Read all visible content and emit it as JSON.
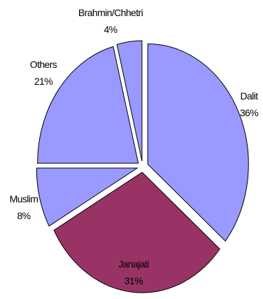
{
  "chart_data": {
    "type": "pie",
    "title": "",
    "slices": [
      {
        "label": "Dalit",
        "pct_label": "36%",
        "value": 36,
        "color": "#9999ff",
        "exploded": true
      },
      {
        "label": "Janajati",
        "pct_label": "31%",
        "value": 31,
        "color": "#993366",
        "exploded": true
      },
      {
        "label": "Muslim",
        "pct_label": "8%",
        "value": 8,
        "color": "#9999ff",
        "exploded": true
      },
      {
        "label": "Others",
        "pct_label": "21%",
        "value": 21,
        "color": "#9999ff",
        "exploded": true
      },
      {
        "label": "Brahmin/Chhetri",
        "pct_label": "4%",
        "value": 4,
        "color": "#9999ff",
        "exploded": true
      }
    ],
    "legend": "none"
  }
}
